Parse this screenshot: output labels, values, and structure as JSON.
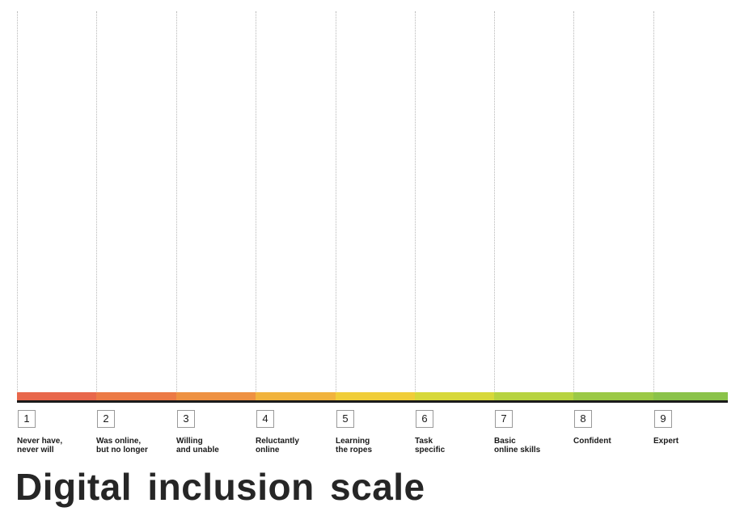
{
  "title": "Digital inclusion scale",
  "steps": [
    {
      "number": "1",
      "label": "Never have,\nnever will",
      "color": "#e8674b"
    },
    {
      "number": "2",
      "label": "Was online,\nbut no longer",
      "color": "#ec7a46"
    },
    {
      "number": "3",
      "label": "Willing\nand unable",
      "color": "#ee9142"
    },
    {
      "number": "4",
      "label": "Reluctantly\nonline",
      "color": "#f1b33d"
    },
    {
      "number": "5",
      "label": "Learning\nthe ropes",
      "color": "#f0cd39"
    },
    {
      "number": "6",
      "label": "Task\nspecific",
      "color": "#d7d83a"
    },
    {
      "number": "7",
      "label": "Basic\nonline skills",
      "color": "#b7d340"
    },
    {
      "number": "8",
      "label": "Confident",
      "color": "#9bc946"
    },
    {
      "number": "9",
      "label": "Expert",
      "color": "#8bc34a"
    }
  ]
}
